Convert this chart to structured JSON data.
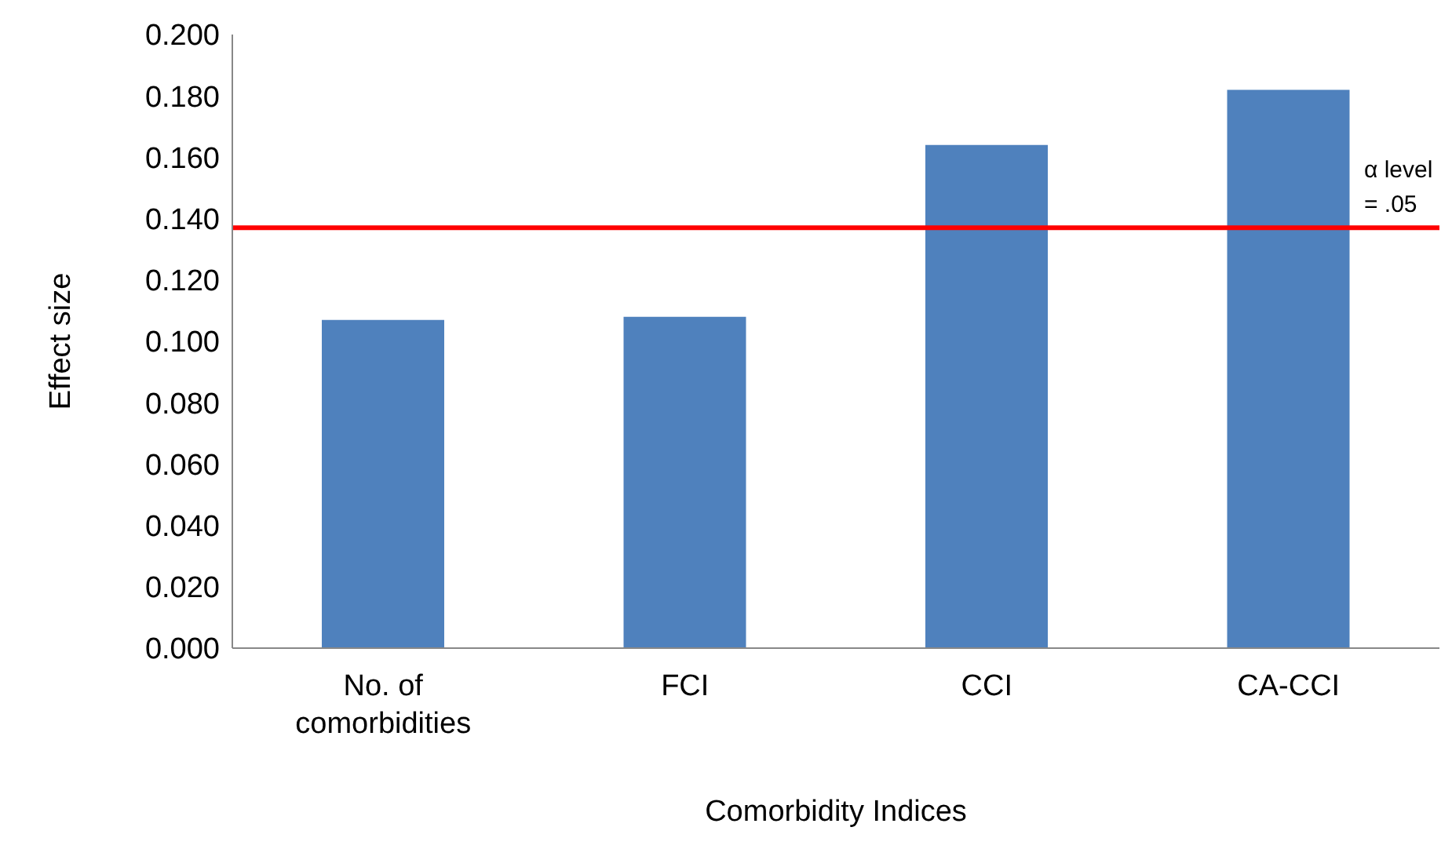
{
  "chart_data": {
    "type": "bar",
    "xlabel": "Comorbidity Indices",
    "ylabel": "Effect size",
    "categories": [
      "No. of comorbidities",
      "FCI",
      "CCI",
      "CA-CCI"
    ],
    "values": [
      0.107,
      0.108,
      0.164,
      0.182
    ],
    "color": "#4f81bd",
    "ylim": [
      0,
      0.2
    ],
    "yticks": [
      {
        "value": 0,
        "label": "0.000"
      },
      {
        "value": 0.02,
        "label": "0.020"
      },
      {
        "value": 0.04,
        "label": "0.040"
      },
      {
        "value": 0.06,
        "label": "0.060"
      },
      {
        "value": 0.08,
        "label": "0.080"
      },
      {
        "value": 0.1,
        "label": "0.100"
      },
      {
        "value": 0.12,
        "label": "0.120"
      },
      {
        "value": 0.14,
        "label": "0.140"
      },
      {
        "value": 0.16,
        "label": "0.160"
      },
      {
        "value": 0.18,
        "label": "0.180"
      },
      {
        "value": 0.2,
        "label": "0.200"
      }
    ],
    "ref_lines": [
      {
        "axis": "y",
        "value": 0.137,
        "label": "α level = .05",
        "color": "#ff0000"
      }
    ],
    "grid": false,
    "legend": false
  }
}
